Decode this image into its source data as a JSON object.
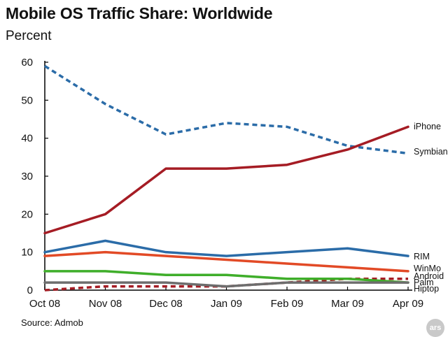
{
  "chart_data": {
    "type": "line",
    "title": "Mobile OS Traffic Share: Worldwide",
    "subtitle": "Percent",
    "xlabel": "",
    "ylabel": "",
    "x": [
      "Oct 08",
      "Nov 08",
      "Dec 08",
      "Jan 09",
      "Feb 09",
      "Mar 09",
      "Apr 09"
    ],
    "ylim": [
      0,
      60
    ],
    "yticks": [
      0,
      10,
      20,
      30,
      40,
      50,
      60
    ],
    "grid": false,
    "legend": "direct labels at line ends (right)",
    "series": [
      {
        "name": "Symbian",
        "values": [
          59,
          49,
          41,
          44,
          43,
          38,
          36
        ],
        "color": "#2b6ca8",
        "dashed": true
      },
      {
        "name": "iPhone",
        "values": [
          15,
          20,
          32,
          32,
          33,
          37,
          43
        ],
        "color": "#a51c24",
        "dashed": false
      },
      {
        "name": "RIM",
        "values": [
          10,
          13,
          10,
          9,
          10,
          11,
          9
        ],
        "color": "#2b6ca8",
        "dashed": false
      },
      {
        "name": "WinMo",
        "values": [
          9,
          10,
          9,
          8,
          7,
          6,
          5
        ],
        "color": "#e24a26",
        "dashed": false
      },
      {
        "name": "Android",
        "values": [
          0,
          1,
          1,
          1,
          2,
          3,
          3
        ],
        "color": "#a51c24",
        "dashed": true
      },
      {
        "name": "Palm",
        "values": [
          5,
          5,
          4,
          4,
          3,
          3,
          2
        ],
        "color": "#3fae2a",
        "dashed": false
      },
      {
        "name": "Hiptop",
        "values": [
          2,
          2,
          2,
          1,
          2,
          2,
          2
        ],
        "color": "#6d6d6d",
        "dashed": false
      }
    ]
  },
  "footer": {
    "source": "Source: Admob",
    "badge": "ars"
  }
}
